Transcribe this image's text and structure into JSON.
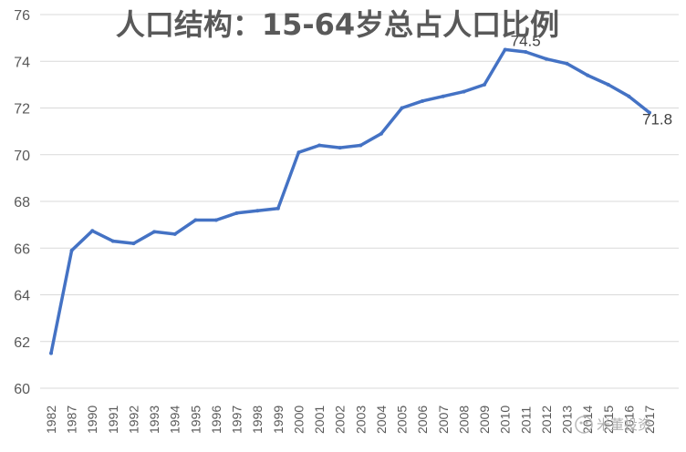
{
  "chart_data": {
    "type": "line",
    "title": "人口结构：15-64岁总占人口比例",
    "categories": [
      "1982",
      "1987",
      "1990",
      "1991",
      "1992",
      "1993",
      "1994",
      "1995",
      "1996",
      "1997",
      "1998",
      "1999",
      "2000",
      "2001",
      "2002",
      "2003",
      "2004",
      "2005",
      "2006",
      "2007",
      "2008",
      "2009",
      "2010",
      "2011",
      "2012",
      "2013",
      "2014",
      "2015",
      "2016",
      "2017"
    ],
    "series": [
      {
        "values": [
          61.5,
          65.9,
          66.74,
          66.3,
          66.2,
          66.7,
          66.6,
          67.2,
          67.2,
          67.5,
          67.6,
          67.7,
          70.1,
          70.4,
          70.3,
          70.4,
          70.9,
          72.0,
          72.3,
          72.5,
          72.7,
          73.0,
          74.5,
          74.4,
          74.1,
          73.9,
          73.4,
          73.0,
          72.5,
          71.8
        ]
      }
    ],
    "ylim": [
      60,
      76
    ],
    "yticks": [
      "60",
      "62",
      "64",
      "66",
      "68",
      "70",
      "72",
      "74",
      "76"
    ],
    "data_labels": [
      {
        "category": "2010",
        "text": "74.5"
      },
      {
        "category": "2017",
        "text": "71.8"
      }
    ],
    "grid": true,
    "line_color": "#4472C4",
    "grid_color": "#d9d9d9"
  },
  "watermark": {
    "text": "米董投资",
    "icon": "wechat-icon"
  }
}
